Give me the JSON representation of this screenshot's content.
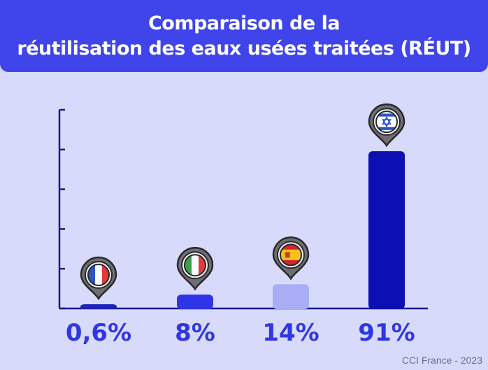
{
  "header": {
    "title_line1": "Comparaison de la",
    "title_line2": "réutilisation des eaux usées traitées (RÉUT)"
  },
  "chart_data": {
    "type": "bar",
    "title": "Comparaison de la réutilisation des eaux usées traitées (RÉUT)",
    "categories": [
      "France",
      "Italie",
      "Espagne",
      "Israël"
    ],
    "values": [
      0.6,
      8,
      14,
      91
    ],
    "value_labels": [
      "0,6%",
      "8%",
      "14%",
      "91%"
    ],
    "unit": "%",
    "ylim": [
      0,
      100
    ],
    "y_ticks": 5,
    "grid": false,
    "legend": "none",
    "bar_colors": [
      "#1e22b8",
      "#2f35e6",
      "#a8adf5",
      "#0c0fb3"
    ],
    "axis_color": "#14178f",
    "label_color": "#3137e0",
    "markers": [
      "france-flag-icon",
      "italy-flag-icon",
      "spain-flag-icon",
      "israel-flag-icon"
    ]
  },
  "footer": {
    "source": "CCI France - 2023"
  }
}
